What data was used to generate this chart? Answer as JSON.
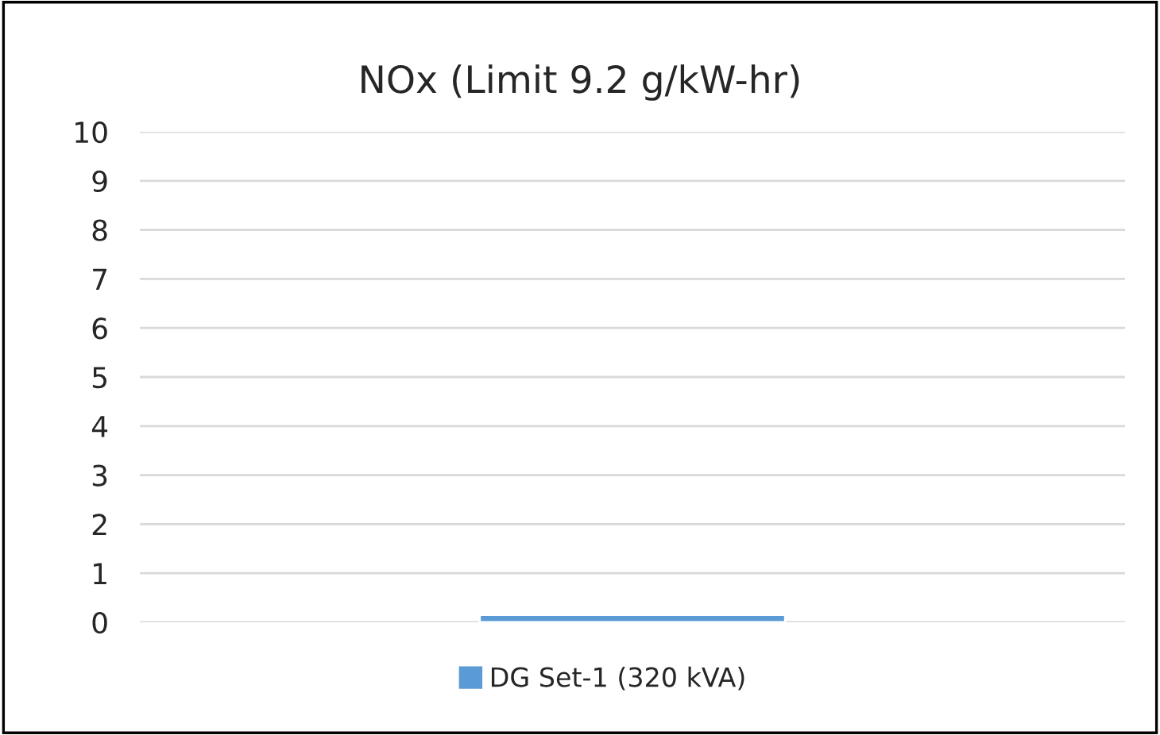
{
  "chart_data": {
    "type": "bar",
    "title": "NOx (Limit 9.2 g/kW-hr)",
    "categories": [
      null
    ],
    "series": [
      {
        "name": "DG Set-1 (320 kVA)",
        "color": "#5b9bd5",
        "values": [
          0.15
        ]
      }
    ],
    "ylim": [
      0,
      10
    ],
    "yticks": [
      0,
      1,
      2,
      3,
      4,
      5,
      6,
      7,
      8,
      9,
      10
    ],
    "grid": "y",
    "legend": "bottom"
  }
}
